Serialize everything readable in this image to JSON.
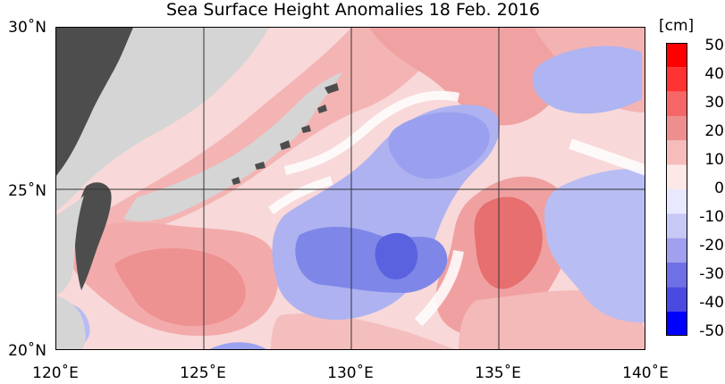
{
  "title": "Sea Surface Height Anomalies  18 Feb. 2016",
  "latitudes": [
    "30˚N",
    "25˚N",
    "20˚N"
  ],
  "longitudes": [
    "120˚E",
    "125˚E",
    "130˚E",
    "135˚E",
    "140˚E"
  ],
  "colorbar": {
    "unit": "[cm]",
    "ticks": [
      "50",
      "40",
      "30",
      "20",
      "10",
      "0",
      "-10",
      "-20",
      "-30",
      "-40",
      "-50"
    ],
    "colors": [
      "#ff0000",
      "#ff3333",
      "#f56767",
      "#ee8f8f",
      "#f6bcbc",
      "#fde8e8",
      "#e8e8ff",
      "#c8c8f6",
      "#a0a0ee",
      "#7070e6",
      "#4a4ae0",
      "#0000ff"
    ]
  },
  "colors": {
    "land": "#4d4d4d",
    "masked": "#d5d5d5",
    "positive": "#f29d9d",
    "negative": "#9ea4ef"
  }
}
